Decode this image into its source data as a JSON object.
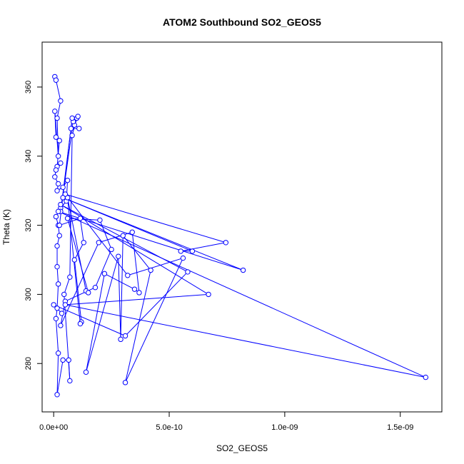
{
  "chart_data": {
    "type": "line",
    "title": "ATOM2 Southbound SO2_GEOS5",
    "xlabel": "SO2_GEOS5",
    "ylabel": "Theta (K)",
    "xlim": [
      -5e-11,
      1.68e-09
    ],
    "ylim": [
      266,
      373
    ],
    "x_ticks": [
      0,
      5e-10,
      1e-09,
      1.5e-09
    ],
    "x_tick_labels": [
      "0.0e+00",
      "5.0e-10",
      "1.0e-09",
      "1.5e-09"
    ],
    "y_ticks": [
      280,
      300,
      320,
      340,
      360
    ],
    "y_tick_labels": [
      "280",
      "300",
      "320",
      "340",
      "360"
    ],
    "series": [
      {
        "color": "#0000ff",
        "marker": "open-circle",
        "points": [
          [
            5e-12,
            363.0
          ],
          [
            1e-11,
            362.0
          ],
          [
            3e-11,
            356.0
          ],
          [
            1.5e-11,
            351.0
          ],
          [
            2e-11,
            340.0
          ],
          [
            5e-12,
            353.0
          ],
          [
            1e-11,
            345.5
          ],
          [
            2.5e-11,
            344.5
          ],
          [
            1.5e-11,
            337.0
          ],
          [
            3e-11,
            338.0
          ],
          [
            1e-11,
            336.0
          ],
          [
            5e-12,
            334.0
          ],
          [
            2e-11,
            332.0
          ],
          [
            1.5e-11,
            330.0
          ],
          [
            4e-11,
            331.0
          ],
          [
            6e-11,
            333.0
          ],
          [
            5.5e-11,
            327.0
          ],
          [
            3e-11,
            325.0
          ],
          [
            1e-11,
            322.5
          ],
          [
            2e-11,
            320.0
          ],
          [
            2.5e-11,
            317.0
          ],
          [
            1.5e-11,
            314.0
          ],
          [
            1.5e-11,
            308.0
          ],
          [
            2e-11,
            303.0
          ],
          [
            1.5e-11,
            296.0
          ],
          [
            1e-11,
            293.0
          ],
          [
            2e-11,
            283.0
          ],
          [
            1.5e-11,
            271.0
          ],
          [
            4e-11,
            281.0
          ],
          [
            6.5e-11,
            281.0
          ],
          [
            7e-11,
            275.0
          ],
          [
            4.5e-11,
            300.0
          ],
          [
            7e-11,
            305.0
          ],
          [
            8e-11,
            346.0
          ],
          [
            1e-10,
            351.0
          ],
          [
            1.05e-10,
            351.5
          ],
          [
            9e-11,
            349.0
          ],
          [
            1.1e-10,
            348.0
          ],
          [
            7.5e-11,
            348.0
          ],
          [
            3e-11,
            324.0
          ],
          [
            8.5e-11,
            350.0
          ],
          [
            8e-11,
            351.0
          ],
          [
            2.5e-11,
            320.0
          ],
          [
            1.15e-10,
            322.0
          ],
          [
            1.3e-10,
            315.0
          ],
          [
            9e-11,
            310.0
          ],
          [
            1.2e-10,
            292.0
          ],
          [
            1.15e-10,
            291.5
          ],
          [
            6e-11,
            328.0
          ],
          [
            1.4e-10,
            301.0
          ],
          [
            1.5e-10,
            300.5
          ],
          [
            6e-11,
            322.0
          ],
          [
            2e-10,
            321.5
          ],
          [
            2.5e-10,
            313.0
          ],
          [
            1.8e-10,
            302.0
          ],
          [
            5e-11,
            298.0
          ],
          [
            3e-11,
            291.0
          ],
          [
            1.95e-10,
            315.0
          ],
          [
            3.4e-10,
            318.0
          ],
          [
            3.7e-10,
            300.5
          ],
          [
            3.5e-10,
            301.5
          ],
          [
            2.2e-10,
            306.0
          ],
          [
            1.4e-10,
            277.5
          ],
          [
            2.8e-10,
            311.0
          ],
          [
            2.9e-10,
            287.0
          ],
          [
            3e-10,
            317.0
          ],
          [
            4.2e-10,
            307.0
          ],
          [
            3.1e-10,
            274.5
          ],
          [
            5.6e-10,
            310.5
          ],
          [
            3.2e-10,
            305.5
          ],
          [
            5e-11,
            329.0
          ],
          [
            7.45e-10,
            315.0
          ],
          [
            5.5e-10,
            312.5
          ],
          [
            6e-10,
            312.5
          ],
          [
            4e-11,
            328.0
          ],
          [
            8.2e-10,
            307.0
          ],
          [
            2e-11,
            324.0
          ],
          [
            1.61e-09,
            276.0
          ],
          [
            5e-11,
            297.0
          ],
          [
            6.7e-10,
            300.0
          ],
          [
            3e-11,
            326.0
          ],
          [
            5.8e-10,
            306.5
          ],
          [
            3.1e-10,
            288.0
          ],
          [
            0.0,
            297.0
          ],
          [
            3.5e-11,
            294.5
          ]
        ]
      }
    ]
  }
}
